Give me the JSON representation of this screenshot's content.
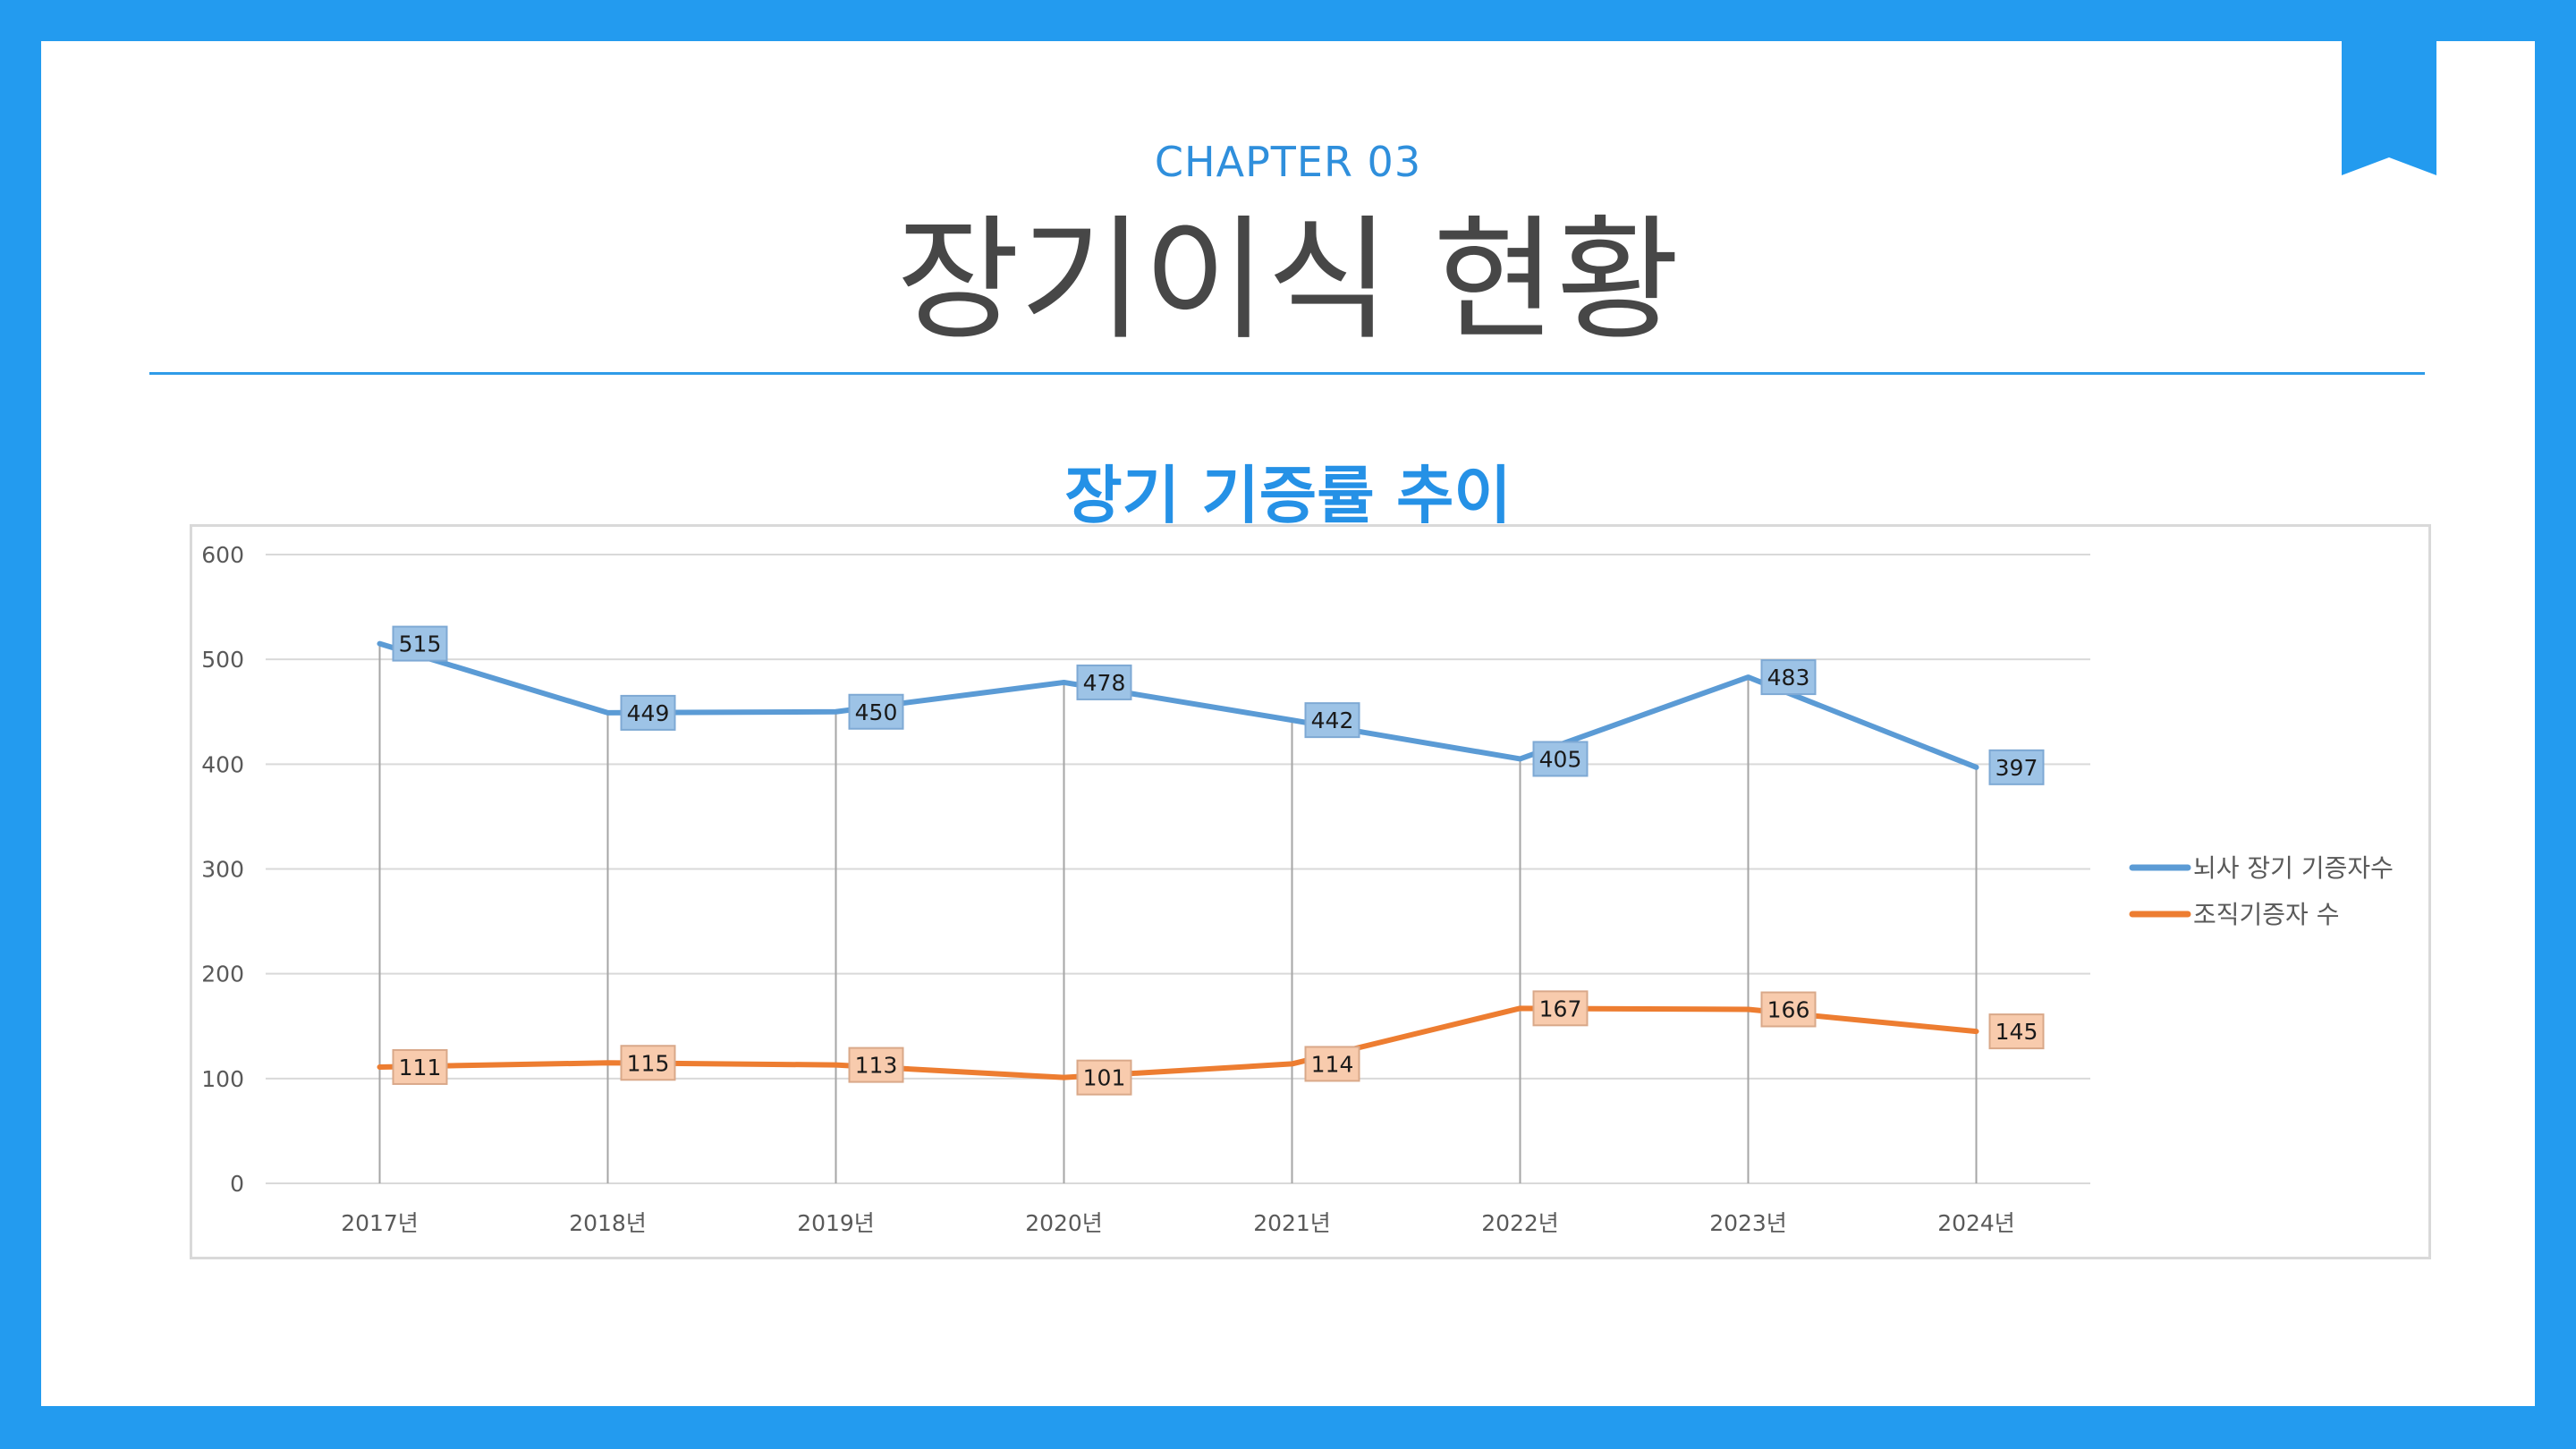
{
  "slide": {
    "chapter": "CHAPTER 03",
    "title": "장기이식 현황",
    "subtitle": "장기 기증률 추이"
  },
  "colors": {
    "frame": "#239bef",
    "accent": "#2591e6",
    "series_brain_death": "#5b9bd5",
    "series_tissue": "#ed7d31"
  },
  "chart_data": {
    "type": "line",
    "title": "장기 기증률 추이",
    "xlabel": "",
    "ylabel": "",
    "categories": [
      "2017년",
      "2018년",
      "2019년",
      "2020년",
      "2021년",
      "2022년",
      "2023년",
      "2024년"
    ],
    "ylim": [
      0,
      600
    ],
    "yticks": [
      0,
      100,
      200,
      300,
      400,
      500,
      600
    ],
    "grid": true,
    "drop_lines": true,
    "legend_position": "right",
    "series": [
      {
        "name": "뇌사 장기 기증자수",
        "values": [
          515,
          449,
          450,
          478,
          442,
          405,
          483,
          397
        ]
      },
      {
        "name": "조직기증자 수",
        "values": [
          111,
          115,
          113,
          101,
          114,
          167,
          166,
          145
        ]
      }
    ]
  }
}
